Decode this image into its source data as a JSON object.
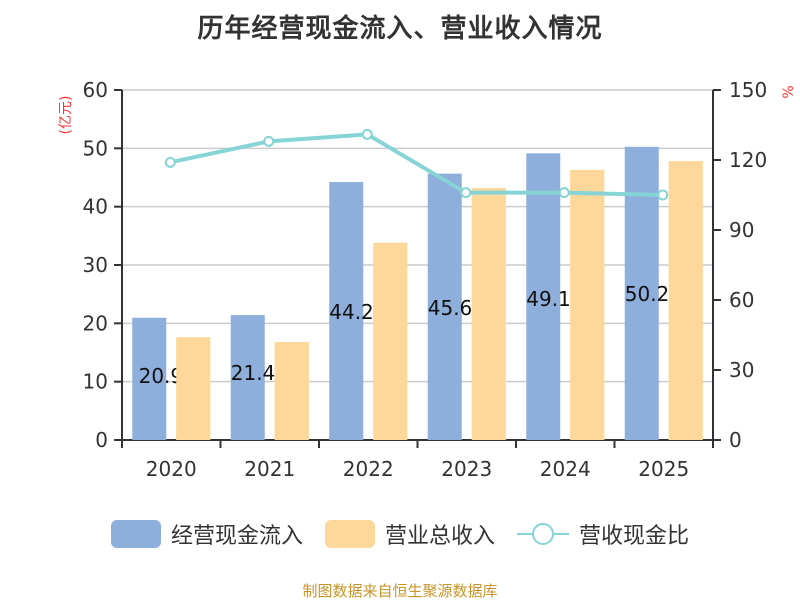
{
  "title": "历年经营现金流入、营业收入情况",
  "left_axis": {
    "unit": "(亿元)",
    "ticks": [
      "0",
      "10",
      "20",
      "30",
      "40",
      "50",
      "60"
    ]
  },
  "right_axis": {
    "unit": "%",
    "ticks": [
      "0",
      "30",
      "60",
      "90",
      "120",
      "150"
    ]
  },
  "x_axis": {
    "categories": [
      "2020",
      "2021",
      "2022",
      "2023",
      "2024",
      "2025"
    ]
  },
  "bar_labels": [
    "20.96",
    "21.412",
    "44.221",
    "45.662",
    "49.142",
    "50.264"
  ],
  "legend": {
    "items": [
      {
        "label": "经营现金流入",
        "color": "#8eaedb",
        "type": "bar"
      },
      {
        "label": "营业总收入",
        "color": "#fdd89a",
        "type": "bar"
      },
      {
        "label": "营收现金比",
        "color": "#86d4d5",
        "type": "line"
      }
    ]
  },
  "source": "制图数据来自恒生聚源数据库",
  "colors": {
    "cash_inflow": "#8eaedb",
    "revenue": "#fdd89a",
    "ratio_line": "#86d4d5",
    "axis": "#333333",
    "grid": "#cccccc",
    "unit_label": "#ff3333",
    "source": "#c8952b"
  },
  "chart_data": {
    "type": "bar",
    "title": "历年经营现金流入、营业收入情况",
    "categories": [
      "2020",
      "2021",
      "2022",
      "2023",
      "2024",
      "2025"
    ],
    "series": [
      {
        "name": "经营现金流入",
        "type": "bar",
        "axis": "left",
        "values": [
          20.96,
          21.412,
          44.221,
          45.662,
          49.142,
          50.264
        ]
      },
      {
        "name": "营业总收入",
        "type": "bar",
        "axis": "left",
        "values": [
          17.6,
          16.8,
          33.8,
          43.2,
          46.3,
          47.8
        ]
      },
      {
        "name": "营收现金比",
        "type": "line",
        "axis": "right",
        "values": [
          119,
          128,
          131,
          106,
          106,
          105
        ]
      }
    ],
    "xlabel": "",
    "ylabel": "(亿元)",
    "ylabel_right": "%",
    "ylim": [
      0,
      60
    ],
    "ylim_right": [
      0,
      150
    ],
    "yticks": [
      0,
      10,
      20,
      30,
      40,
      50,
      60
    ],
    "yticks_right": [
      0,
      30,
      60,
      90,
      120,
      150
    ],
    "grid": true,
    "legend_position": "bottom"
  }
}
